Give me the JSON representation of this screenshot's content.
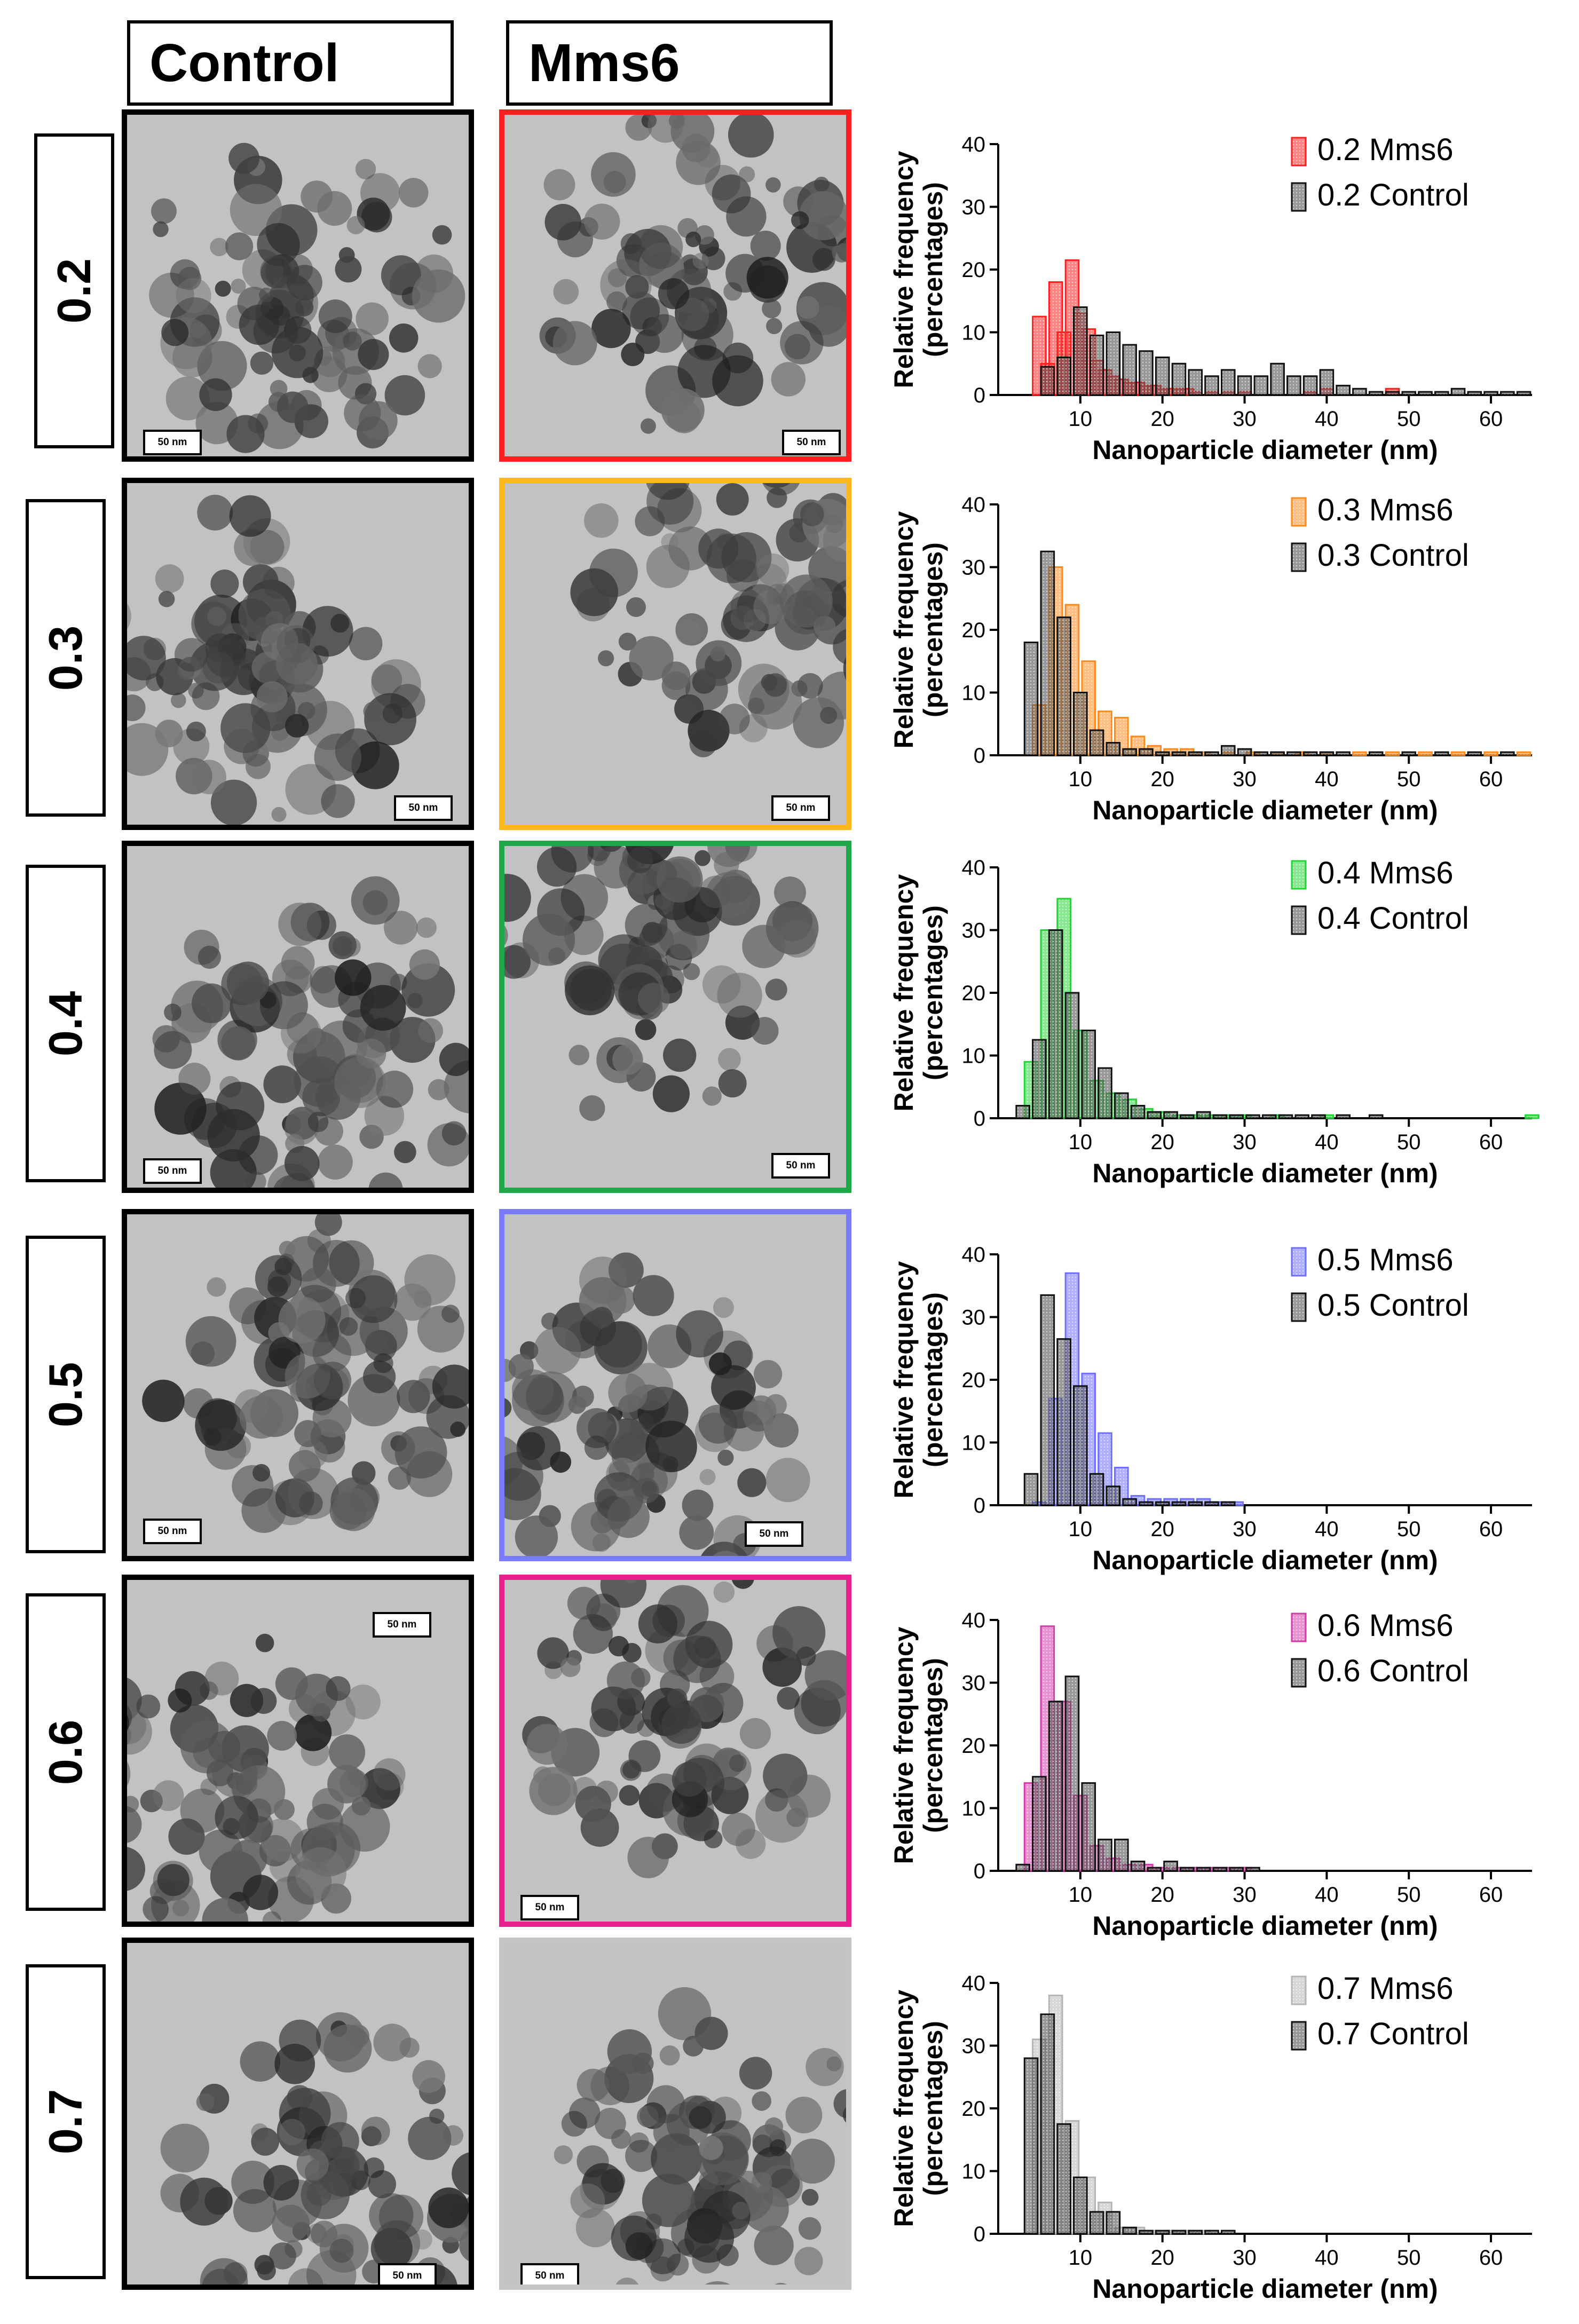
{
  "headers": {
    "control": "Control",
    "mms6": "Mms6"
  },
  "scale_bar": "50 nm",
  "rows": [
    {
      "label": "0.2",
      "frame_color": "#ff1f1f",
      "chart": {
        "type": "bar",
        "mms6_color": "#ff1f1f",
        "control_color": "#555555",
        "legend": {
          "mms6": "0.2 Mms6",
          "control": "0.2 Control"
        },
        "ylabel": "Relative frequency",
        "ylabel2": "(percentages)",
        "xlabel": "Nanoparticle diameter (nm)",
        "xlim": [
          0,
          65
        ],
        "ylim": [
          0,
          40
        ],
        "xticks": [
          10,
          20,
          30,
          40,
          50,
          60
        ],
        "yticks": [
          0,
          10,
          20,
          30,
          40
        ],
        "series": [
          {
            "name": "0.2 Mms6",
            "x": [
              5,
              6,
              7,
              8,
              9,
              10,
              11,
              12,
              13,
              14,
              15,
              16,
              17,
              18,
              19,
              20,
              21,
              22,
              23,
              24,
              26,
              28,
              30,
              38,
              40,
              48
            ],
            "values": [
              12.5,
              5,
              18,
              10,
              21.5,
              13,
              10.5,
              5.5,
              4,
              3,
              2.5,
              2,
              2,
              1.5,
              1.5,
              1,
              1,
              1,
              1,
              0.5,
              0.5,
              0.5,
              0.5,
              0.5,
              1,
              1
            ]
          },
          {
            "name": "0.2 Control",
            "x": [
              6,
              8,
              10,
              12,
              14,
              16,
              18,
              20,
              22,
              24,
              26,
              28,
              30,
              32,
              34,
              36,
              38,
              40,
              42,
              44,
              46,
              48,
              50,
              52,
              54,
              56,
              58,
              60,
              62,
              64
            ],
            "values": [
              4.5,
              6,
              14,
              9.5,
              10,
              8,
              7,
              6,
              5,
              4,
              3,
              4,
              3,
              3,
              5,
              3,
              3,
              4,
              1.5,
              1,
              0.5,
              0.5,
              0.5,
              0.5,
              0.5,
              1,
              0.5,
              0.5,
              0.5,
              0.5
            ]
          }
        ]
      }
    },
    {
      "label": "0.3",
      "frame_color": "#ffb81c",
      "chart": {
        "type": "bar",
        "mms6_color": "#ff8a1c",
        "control_color": "#555555",
        "legend": {
          "mms6": "0.3 Mms6",
          "control": "0.3 Control"
        },
        "ylabel": "Relative frequency",
        "ylabel2": "(percentages)",
        "xlabel": "Nanoparticle diameter (nm)",
        "xlim": [
          0,
          65
        ],
        "ylim": [
          0,
          40
        ],
        "xticks": [
          10,
          20,
          30,
          40,
          50,
          60
        ],
        "yticks": [
          0,
          10,
          20,
          30,
          40
        ],
        "series": [
          {
            "name": "0.3 Mms6",
            "x": [
              5,
              7,
              9,
              11,
              13,
              15,
              17,
              19,
              21,
              23,
              25,
              28,
              31,
              34,
              37,
              40,
              44,
              48,
              52,
              56,
              60,
              64
            ],
            "values": [
              8,
              30,
              24,
              15,
              7,
              6,
              3,
              1.5,
              1,
              1,
              0.5,
              0.5,
              0.5,
              0.5,
              0.5,
              0.5,
              0.5,
              0.5,
              0.5,
              0.5,
              0.5,
              0.5
            ]
          },
          {
            "name": "0.3 Control",
            "x": [
              4,
              6,
              8,
              10,
              12,
              14,
              16,
              18,
              20,
              22,
              24,
              26,
              28,
              30,
              32,
              34,
              36,
              38,
              40,
              42,
              46,
              50,
              54,
              58,
              62
            ],
            "values": [
              18,
              32.5,
              22,
              10,
              4,
              2,
              1,
              1,
              0.5,
              0.5,
              0.5,
              0.5,
              1.5,
              1,
              0.5,
              0.5,
              0.5,
              0.5,
              0.5,
              0.5,
              0.5,
              0.5,
              0.5,
              0.5,
              0.5
            ]
          }
        ]
      }
    },
    {
      "label": "0.4",
      "frame_color": "#1fa84a",
      "chart": {
        "type": "bar",
        "mms6_color": "#22d435",
        "control_color": "#555555",
        "legend": {
          "mms6": "0.4 Mms6",
          "control": "0.4 Control"
        },
        "ylabel": "Relative frequency",
        "ylabel2": "(percentages)",
        "xlabel": "Nanoparticle diameter (nm)",
        "xlim": [
          0,
          65
        ],
        "ylim": [
          0,
          40
        ],
        "xticks": [
          10,
          20,
          30,
          40,
          50,
          60
        ],
        "yticks": [
          0,
          10,
          20,
          30,
          40
        ],
        "series": [
          {
            "name": "0.4 Mms6",
            "x": [
              4,
              6,
              8,
              10,
              12,
              14,
              16,
              18,
              20,
              22,
              24,
              26,
              28,
              30,
              34,
              40,
              65
            ],
            "values": [
              9,
              30,
              35,
              14,
              6,
              4,
              3,
              1.5,
              1,
              0.5,
              0.5,
              0.5,
              0.5,
              0.5,
              0.5,
              0.5,
              0.5
            ]
          },
          {
            "name": "0.4 Control",
            "x": [
              3,
              5,
              7,
              9,
              11,
              13,
              15,
              17,
              19,
              21,
              23,
              25,
              27,
              29,
              31,
              33,
              35,
              37,
              39,
              42,
              46
            ],
            "values": [
              2,
              12.5,
              30,
              20,
              14,
              8,
              4,
              2,
              1,
              1,
              0.5,
              1,
              0.5,
              0.5,
              0.5,
              0.5,
              0.5,
              0.5,
              0.5,
              0.5,
              0.5
            ]
          }
        ]
      }
    },
    {
      "label": "0.5",
      "frame_color": "#7b7bff",
      "chart": {
        "type": "bar",
        "mms6_color": "#6f6fff",
        "control_color": "#555555",
        "legend": {
          "mms6": "0.5 Mms6",
          "control": "0.5 Control"
        },
        "ylabel": "Relative frequency",
        "ylabel2": "(percentages)",
        "xlabel": "Nanoparticle diameter (nm)",
        "xlim": [
          0,
          65
        ],
        "ylim": [
          0,
          40
        ],
        "xticks": [
          10,
          20,
          30,
          40,
          50,
          60
        ],
        "yticks": [
          0,
          10,
          20,
          30,
          40
        ],
        "series": [
          {
            "name": "0.5 Mms6",
            "x": [
              5,
              7,
              9,
              11,
              13,
              15,
              17,
              19,
              21,
              23,
              25,
              27,
              29
            ],
            "values": [
              0.5,
              17,
              37,
              21,
              11.5,
              6,
              1.5,
              1,
              1,
              1,
              1,
              0.5,
              0.5
            ]
          },
          {
            "name": "0.5 Control",
            "x": [
              4,
              6,
              8,
              10,
              12,
              14,
              16,
              18,
              20,
              22,
              24,
              26,
              28
            ],
            "values": [
              5,
              33.5,
              26.5,
              19,
              5,
              3,
              1,
              0.5,
              0.5,
              0.5,
              0.5,
              0.5,
              0.5
            ]
          }
        ]
      }
    },
    {
      "label": "0.6",
      "frame_color": "#e8208f",
      "chart": {
        "type": "bar",
        "mms6_color": "#d43aa8",
        "control_color": "#555555",
        "legend": {
          "mms6": "0.6 Mms6",
          "control": "0.6 Control"
        },
        "ylabel": "Relative frequency",
        "ylabel2": "(percentages)",
        "xlabel": "Nanoparticle diameter (nm)",
        "xlim": [
          0,
          65
        ],
        "ylim": [
          0,
          40
        ],
        "xticks": [
          10,
          20,
          30,
          40,
          50,
          60
        ],
        "yticks": [
          0,
          10,
          20,
          30,
          40
        ],
        "series": [
          {
            "name": "0.6 Mms6",
            "x": [
              4,
              6,
              8,
              10,
              12,
              14,
              16,
              18,
              20,
              22,
              24,
              26,
              28,
              30
            ],
            "values": [
              14,
              39,
              27,
              12,
              4,
              2,
              1,
              1,
              0.5,
              0.5,
              0.5,
              0.5,
              0.5,
              0.5
            ]
          },
          {
            "name": "0.6 Control",
            "x": [
              3,
              5,
              7,
              9,
              11,
              13,
              15,
              17,
              19,
              21,
              23,
              25,
              27,
              29,
              31
            ],
            "values": [
              1,
              15,
              27,
              31,
              14,
              5,
              5,
              1.5,
              0.5,
              1.5,
              0.5,
              0.5,
              0.5,
              0.5,
              0.5
            ]
          }
        ]
      }
    },
    {
      "label": "0.7",
      "frame_color": "#c4c4c4",
      "chart": {
        "type": "bar",
        "mms6_color": "#b5b5b5",
        "control_color": "#555555",
        "legend": {
          "mms6": "0.7 Mms6",
          "control": "0.7 Control"
        },
        "ylabel": "Relative frequency",
        "ylabel2": "(percentages)",
        "xlabel": "Nanoparticle diameter (nm)",
        "xlim": [
          0,
          65
        ],
        "ylim": [
          0,
          40
        ],
        "xticks": [
          10,
          20,
          30,
          40,
          50,
          60
        ],
        "yticks": [
          0,
          10,
          20,
          30,
          40
        ],
        "series": [
          {
            "name": "0.7 Mms6",
            "x": [
              5,
              7,
              9,
              11,
              13,
              15,
              17,
              19,
              21,
              23,
              25
            ],
            "values": [
              31,
              38,
              18,
              9,
              5,
              1,
              1,
              0.5,
              0.5,
              0.5,
              0.5
            ]
          },
          {
            "name": "0.7 Control",
            "x": [
              4,
              6,
              8,
              10,
              12,
              14,
              16,
              18,
              20,
              22,
              24,
              26,
              28
            ],
            "values": [
              28,
              35,
              17.5,
              9,
              3.5,
              3.5,
              1,
              0.5,
              0.5,
              0.5,
              0.5,
              0.5,
              0.5
            ]
          }
        ]
      }
    }
  ]
}
